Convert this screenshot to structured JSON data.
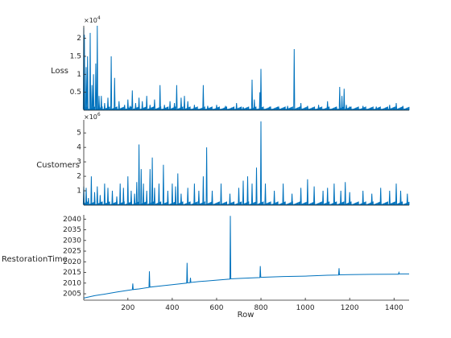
{
  "chart_data": [
    {
      "type": "line",
      "ylabel": "Loss",
      "exponent_label": "×10",
      "exponent_power": "4",
      "xlim": [
        1,
        1468
      ],
      "ylim": [
        0,
        23500
      ],
      "yticks": [
        5000,
        10000,
        15000,
        20000
      ],
      "ytick_labels": [
        "0.5",
        "1",
        "1.5",
        "2"
      ],
      "baseline": 300,
      "grid": false,
      "color": "#0072BD",
      "x": [
        1,
        4,
        12,
        18,
        30,
        38,
        45,
        55,
        62,
        70,
        80,
        95,
        110,
        125,
        140,
        160,
        185,
        200,
        210,
        220,
        235,
        250,
        265,
        285,
        300,
        320,
        345,
        365,
        390,
        410,
        420,
        440,
        455,
        470,
        500,
        540,
        560,
        600,
        640,
        690,
        720,
        760,
        770,
        795,
        800,
        840,
        880,
        920,
        950,
        980,
        1010,
        1060,
        1100,
        1140,
        1155,
        1165,
        1175,
        1185,
        1200,
        1260,
        1320,
        1380,
        1410,
        1440,
        1460
      ],
      "y": [
        23000,
        21000,
        12000,
        15000,
        21500,
        7000,
        10000,
        13000,
        23500,
        4000,
        4000,
        2000,
        3500,
        15000,
        9000,
        2500,
        1500,
        3000,
        1200,
        5500,
        2000,
        3500,
        2500,
        4000,
        1500,
        3000,
        7000,
        1500,
        2500,
        2000,
        7000,
        3500,
        4000,
        2500,
        1500,
        7000,
        1200,
        1500,
        1200,
        2000,
        900,
        8500,
        3000,
        5000,
        11500,
        1000,
        800,
        1200,
        17000,
        2000,
        1200,
        1500,
        2500,
        900,
        6500,
        4000,
        6000,
        1500,
        1000,
        1200,
        1000,
        1500,
        2000,
        1200,
        500
      ]
    },
    {
      "type": "line",
      "ylabel": "Customers",
      "exponent_label": "×10",
      "exponent_power": "6",
      "xlim": [
        1,
        1468
      ],
      "ylim": [
        0,
        5900000
      ],
      "yticks": [
        1000000,
        2000000,
        3000000,
        4000000,
        5000000
      ],
      "ytick_labels": [
        "1",
        "2",
        "3",
        "4",
        "5"
      ],
      "baseline": 50000,
      "grid": false,
      "color": "#0072BD",
      "x": [
        1,
        12,
        22,
        35,
        50,
        62,
        75,
        95,
        110,
        130,
        150,
        165,
        180,
        200,
        215,
        230,
        240,
        250,
        260,
        270,
        285,
        300,
        310,
        320,
        340,
        360,
        380,
        400,
        415,
        425,
        440,
        470,
        500,
        520,
        540,
        555,
        580,
        620,
        660,
        700,
        720,
        740,
        760,
        780,
        800,
        820,
        860,
        900,
        940,
        980,
        1010,
        1040,
        1080,
        1100,
        1130,
        1160,
        1180,
        1200,
        1260,
        1300,
        1340,
        1380,
        1410,
        1430,
        1460
      ],
      "y": [
        1300000,
        1200000,
        500000,
        2000000,
        900000,
        1300000,
        700000,
        1500000,
        1200000,
        1000000,
        600000,
        1500000,
        1200000,
        2000000,
        1000000,
        800000,
        1600000,
        4200000,
        2500000,
        1500000,
        1000000,
        2500000,
        3300000,
        1200000,
        1500000,
        2800000,
        1000000,
        1500000,
        1300000,
        2200000,
        800000,
        1200000,
        1500000,
        1000000,
        2000000,
        4000000,
        1000000,
        1500000,
        800000,
        1200000,
        1700000,
        2000000,
        1500000,
        2600000,
        5800000,
        1500000,
        1000000,
        1500000,
        800000,
        1200000,
        1800000,
        1300000,
        1000000,
        1200000,
        1500000,
        1000000,
        1600000,
        900000,
        1000000,
        800000,
        1200000,
        1000000,
        1500000,
        1000000,
        800000
      ]
    },
    {
      "type": "line",
      "ylabel": "RestorationTime",
      "xlabel": "Row",
      "xlim": [
        1,
        1468
      ],
      "ylim": [
        2002,
        2042
      ],
      "yticks": [
        2005,
        2010,
        2015,
        2020,
        2025,
        2030,
        2035,
        2040
      ],
      "ytick_labels": [
        "2005",
        "2010",
        "2015",
        "2020",
        "2025",
        "2030",
        "2035",
        "2040"
      ],
      "xticks": [
        200,
        400,
        600,
        800,
        1000,
        1200,
        1400
      ],
      "xtick_labels": [
        "200",
        "400",
        "600",
        "800",
        "1000",
        "1200",
        "1400"
      ],
      "grid": false,
      "color": "#0072BD",
      "x": [
        1,
        50,
        100,
        150,
        200,
        220,
        222,
        224,
        250,
        295,
        297,
        299,
        350,
        400,
        465,
        467,
        469,
        480,
        482,
        484,
        520,
        600,
        660,
        662,
        664,
        700,
        795,
        797,
        799,
        850,
        900,
        1000,
        1100,
        1150,
        1152,
        1154,
        1200,
        1300,
        1400,
        1420,
        1422,
        1424,
        1468
      ],
      "y": [
        2003.0,
        2004.1,
        2004.9,
        2005.8,
        2006.6,
        2006.9,
        2009.8,
        2007.0,
        2007.3,
        2008.0,
        2015.5,
        2008.1,
        2008.7,
        2009.3,
        2010.0,
        2019.5,
        2010.1,
        2010.2,
        2012.5,
        2010.3,
        2010.7,
        2011.4,
        2011.9,
        2041.5,
        2012.0,
        2012.2,
        2012.6,
        2018.0,
        2012.7,
        2012.9,
        2013.1,
        2013.3,
        2013.7,
        2013.8,
        2017.0,
        2013.9,
        2014.0,
        2014.1,
        2014.2,
        2014.2,
        2015.0,
        2014.3,
        2014.3
      ]
    }
  ]
}
